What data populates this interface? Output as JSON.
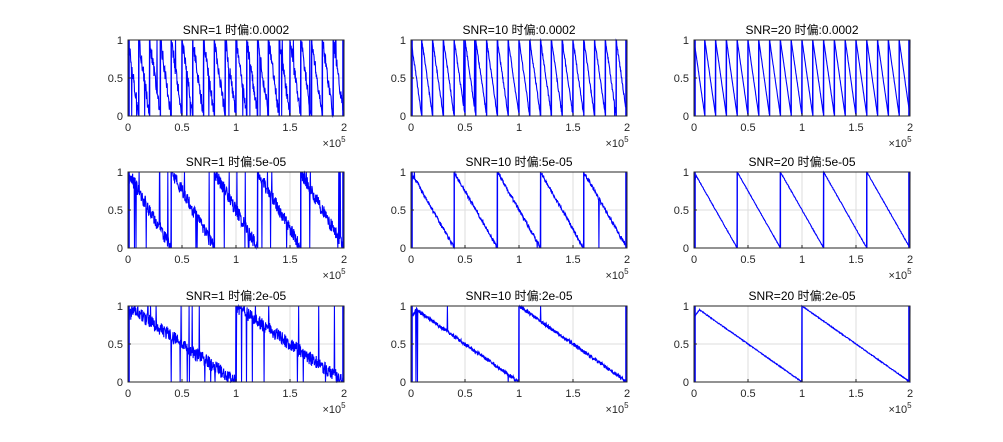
{
  "figure": {
    "background": "#ffffff",
    "line_color": "#0000ff",
    "axis_color": "#262626",
    "grid_color": "#dddddd"
  },
  "chart_data": [
    {
      "type": "line",
      "title": "SNR=1  时偏:0.0002",
      "xlim": [
        0,
        200000
      ],
      "ylim": [
        0,
        1
      ],
      "xticks": [
        "0",
        "0.5",
        "1",
        "1.5",
        "2"
      ],
      "yticks": [
        "0",
        "0.5",
        "1"
      ],
      "x_exponent": "×10",
      "x_exponent_power": "5",
      "grid": true,
      "series": [
        {
          "shape": "sawtooth",
          "period_samples": 10000,
          "noise": "high",
          "values": [
            [
              0,
              0.8
            ],
            [
              10000,
              0
            ],
            [
              10000,
              1
            ],
            [
              20000,
              0
            ]
          ]
        }
      ]
    },
    {
      "type": "line",
      "title": "SNR=10  时偏:0.0002",
      "xlim": [
        0,
        200000
      ],
      "ylim": [
        0,
        1
      ],
      "xticks": [
        "0",
        "0.5",
        "1",
        "1.5",
        "2"
      ],
      "yticks": [
        "0",
        "0.5",
        "1"
      ],
      "x_exponent": "×10",
      "x_exponent_power": "5",
      "grid": true,
      "series": [
        {
          "shape": "sawtooth",
          "period_samples": 10000,
          "noise": "medium",
          "values": [
            [
              0,
              0.85
            ],
            [
              10000,
              0
            ],
            [
              10000,
              1
            ],
            [
              20000,
              0
            ]
          ]
        }
      ]
    },
    {
      "type": "line",
      "title": "SNR=20  时偏:0.0002",
      "xlim": [
        0,
        200000
      ],
      "ylim": [
        0,
        1
      ],
      "xticks": [
        "0",
        "0.5",
        "1",
        "1.5",
        "2"
      ],
      "yticks": [
        "0",
        "0.5",
        "1"
      ],
      "x_exponent": "×10",
      "x_exponent_power": "5",
      "grid": true,
      "series": [
        {
          "shape": "sawtooth",
          "period_samples": 10000,
          "noise": "low",
          "values": [
            [
              0,
              0.85
            ],
            [
              10000,
              0
            ],
            [
              10000,
              1
            ],
            [
              20000,
              0
            ]
          ]
        }
      ]
    },
    {
      "type": "line",
      "title": "SNR=1  时偏:5e-05",
      "xlim": [
        0,
        200000
      ],
      "ylim": [
        0,
        1
      ],
      "xticks": [
        "0",
        "0.5",
        "1",
        "1.5",
        "2"
      ],
      "yticks": [
        "0",
        "0.5",
        "1"
      ],
      "x_exponent": "×10",
      "x_exponent_power": "5",
      "grid": true,
      "series": [
        {
          "shape": "sawtooth",
          "period_samples": 40000,
          "noise": "high",
          "values": [
            [
              0,
              0.8
            ],
            [
              40000,
              0
            ],
            [
              40000,
              1
            ],
            [
              80000,
              0
            ]
          ]
        }
      ]
    },
    {
      "type": "line",
      "title": "SNR=10  时偏:5e-05",
      "xlim": [
        0,
        200000
      ],
      "ylim": [
        0,
        1
      ],
      "xticks": [
        "0",
        "0.5",
        "1",
        "1.5",
        "2"
      ],
      "yticks": [
        "0",
        "0.5",
        "1"
      ],
      "x_exponent": "×10",
      "x_exponent_power": "5",
      "grid": true,
      "series": [
        {
          "shape": "sawtooth",
          "period_samples": 40000,
          "noise": "medium",
          "values": [
            [
              0,
              0.85
            ],
            [
              40000,
              0
            ],
            [
              40000,
              1
            ],
            [
              80000,
              0
            ]
          ]
        }
      ]
    },
    {
      "type": "line",
      "title": "SNR=20  时偏:5e-05",
      "xlim": [
        0,
        200000
      ],
      "ylim": [
        0,
        1
      ],
      "xticks": [
        "0",
        "0.5",
        "1",
        "1.5",
        "2"
      ],
      "yticks": [
        "0",
        "0.5",
        "1"
      ],
      "x_exponent": "×10",
      "x_exponent_power": "5",
      "grid": true,
      "series": [
        {
          "shape": "sawtooth",
          "period_samples": 40000,
          "noise": "low",
          "values": [
            [
              0,
              0.85
            ],
            [
              40000,
              0
            ],
            [
              40000,
              1
            ],
            [
              80000,
              0
            ]
          ]
        }
      ]
    },
    {
      "type": "line",
      "title": "SNR=1  时偏:2e-05",
      "xlim": [
        0,
        200000
      ],
      "ylim": [
        0,
        1
      ],
      "xticks": [
        "0",
        "0.5",
        "1",
        "1.5",
        "2"
      ],
      "yticks": [
        "0",
        "0.5",
        "1"
      ],
      "x_exponent": "×10",
      "x_exponent_power": "5",
      "grid": true,
      "series": [
        {
          "shape": "sawtooth",
          "period_samples": 100000,
          "noise": "high",
          "values": [
            [
              0,
              0.95
            ],
            [
              100000,
              0
            ],
            [
              100000,
              1
            ],
            [
              200000,
              0
            ]
          ]
        }
      ]
    },
    {
      "type": "line",
      "title": "SNR=10  时偏:2e-05",
      "xlim": [
        0,
        200000
      ],
      "ylim": [
        0,
        1
      ],
      "xticks": [
        "0",
        "0.5",
        "1",
        "1.5",
        "2"
      ],
      "yticks": [
        "0",
        "0.5",
        "1"
      ],
      "x_exponent": "×10",
      "x_exponent_power": "5",
      "grid": true,
      "series": [
        {
          "shape": "sawtooth",
          "period_samples": 100000,
          "noise": "medium",
          "values": [
            [
              0,
              0.95
            ],
            [
              100000,
              0
            ],
            [
              100000,
              1
            ],
            [
              200000,
              0
            ]
          ]
        }
      ]
    },
    {
      "type": "line",
      "title": "SNR=20  时偏:2e-05",
      "xlim": [
        0,
        200000
      ],
      "ylim": [
        0,
        1
      ],
      "xticks": [
        "0",
        "0.5",
        "1",
        "1.5",
        "2"
      ],
      "yticks": [
        "0",
        "0.5",
        "1"
      ],
      "x_exponent": "×10",
      "x_exponent_power": "5",
      "grid": true,
      "series": [
        {
          "shape": "sawtooth",
          "period_samples": 100000,
          "noise": "low",
          "values": [
            [
              0,
              0.95
            ],
            [
              100000,
              0
            ],
            [
              100000,
              1
            ],
            [
              200000,
              0
            ]
          ]
        }
      ]
    }
  ]
}
